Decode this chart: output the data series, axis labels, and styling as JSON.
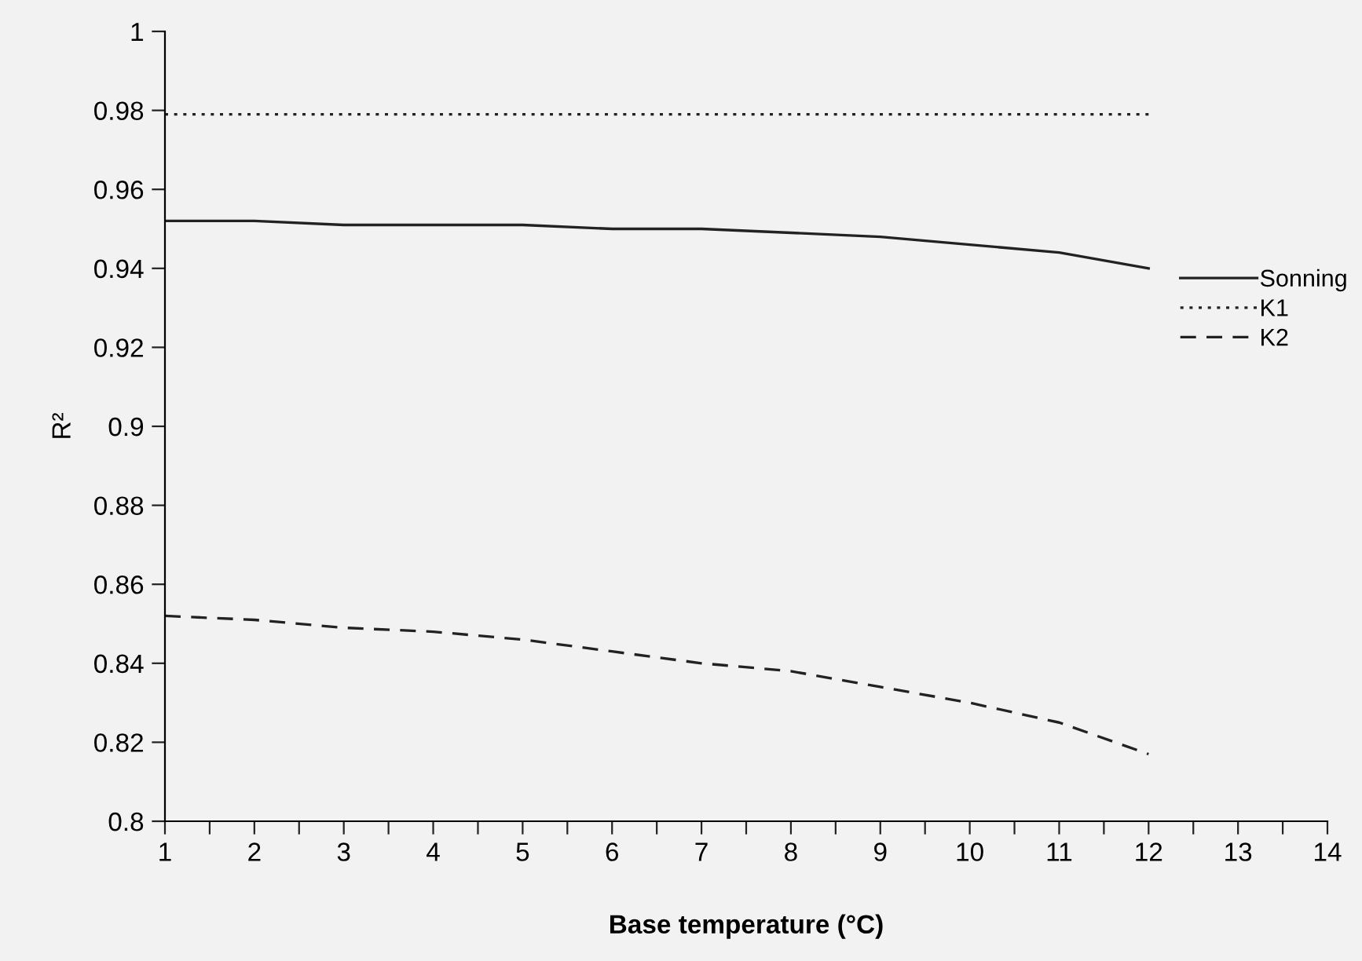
{
  "chart_data": {
    "type": "line",
    "xlabel": "Base temperature (°C)",
    "ylabel": "R²",
    "x": [
      1,
      2,
      3,
      4,
      5,
      6,
      7,
      8,
      9,
      10,
      11,
      12
    ],
    "series": [
      {
        "name": "Sonning",
        "color": "#222222",
        "line_style": "solid",
        "values": [
          0.952,
          0.952,
          0.951,
          0.951,
          0.951,
          0.95,
          0.95,
          0.949,
          0.948,
          0.946,
          0.944,
          0.94
        ]
      },
      {
        "name": "K1",
        "color": "#222222",
        "line_style": "dotted",
        "values": [
          0.979,
          0.979,
          0.979,
          0.979,
          0.979,
          0.979,
          0.979,
          0.979,
          0.979,
          0.979,
          0.979,
          0.979
        ]
      },
      {
        "name": "K2",
        "color": "#222222",
        "line_style": "dashed",
        "values": [
          0.852,
          0.851,
          0.849,
          0.848,
          0.846,
          0.843,
          0.84,
          0.838,
          0.834,
          0.83,
          0.825,
          0.817
        ]
      }
    ],
    "xlim": [
      1,
      14
    ],
    "xticks": [
      1,
      {
        "value": 1.5,
        "label": null
      },
      2,
      {
        "value": 2.5,
        "label": null
      },
      3,
      {
        "value": 3.5,
        "label": null
      },
      4,
      {
        "value": 4.5,
        "label": null
      },
      5,
      {
        "value": 5.5,
        "label": null
      },
      6,
      {
        "value": 6.5,
        "label": null
      },
      7,
      {
        "value": 7.5,
        "label": null
      },
      8,
      {
        "value": 8.5,
        "label": null
      },
      9,
      {
        "value": 9.5,
        "label": null
      },
      10,
      {
        "value": 10.5,
        "label": null
      },
      11,
      {
        "value": 11.5,
        "label": null
      },
      12,
      {
        "value": 12.5,
        "label": null
      },
      13,
      {
        "value": 13.5,
        "label": null
      },
      14
    ],
    "ylim": [
      0.8,
      1
    ],
    "yticks": [
      0.8,
      0.82,
      0.84,
      0.86,
      0.88,
      0.9,
      0.92,
      0.94,
      0.96,
      0.98,
      1
    ],
    "grid": false,
    "legend": "right",
    "marker": "none"
  }
}
